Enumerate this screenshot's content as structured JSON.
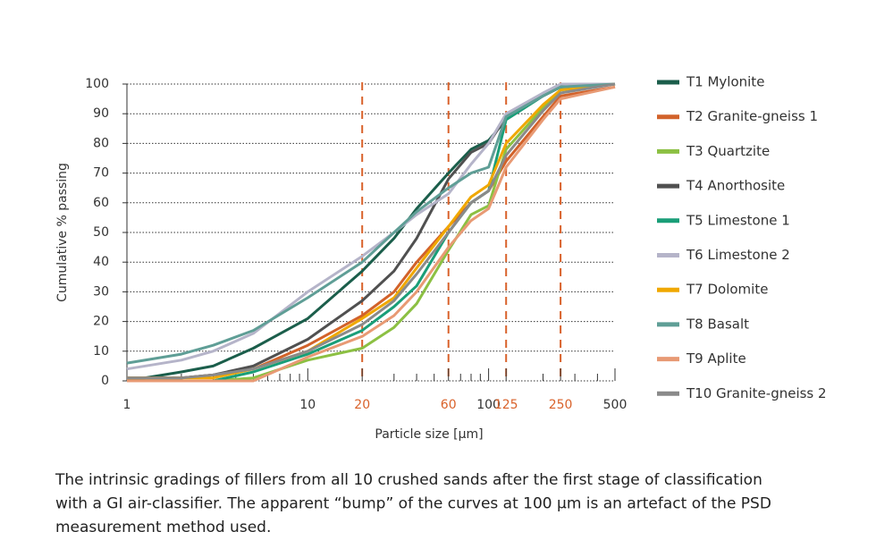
{
  "chart_data": {
    "type": "line",
    "xlabel": "Particle size [µm]",
    "ylabel": "Cumulative % passing",
    "log_x": true,
    "grid": "y-dotted",
    "legend": "right",
    "x": [
      1,
      2,
      3,
      5,
      10,
      20,
      30,
      40,
      60,
      80,
      100,
      125,
      200,
      250,
      500
    ],
    "xlim": [
      1,
      500
    ],
    "xticks": [
      1,
      10,
      20,
      60,
      100,
      125,
      250,
      500
    ],
    "xticks_minor": [
      2,
      3,
      4,
      5,
      6,
      7,
      8,
      9,
      30,
      40,
      50,
      70,
      80,
      90,
      200,
      300,
      400
    ],
    "highlight_x": [
      20,
      60,
      125,
      250
    ],
    "highlight_color": "#d9622b",
    "ylim": [
      0,
      100
    ],
    "yticks": [
      0,
      10,
      20,
      30,
      40,
      50,
      60,
      70,
      80,
      90,
      100
    ],
    "series": [
      {
        "name": "T1 Mylonite",
        "color": "#1b5e4b",
        "values": [
          0,
          3,
          5,
          11,
          21,
          37,
          48,
          58,
          70,
          78,
          81,
          88,
          96,
          99,
          100
        ]
      },
      {
        "name": "T2 Granite-gneiss 1",
        "color": "#d2622a",
        "values": [
          1,
          1,
          2,
          4,
          12,
          22,
          30,
          40,
          52,
          60,
          64,
          74,
          89,
          96,
          99
        ]
      },
      {
        "name": "T3 Quartzite",
        "color": "#8cc043",
        "values": [
          0,
          0,
          0,
          1,
          7,
          11,
          18,
          26,
          44,
          56,
          59,
          78,
          92,
          98,
          100
        ]
      },
      {
        "name": "T4 Anorthosite",
        "color": "#505050",
        "values": [
          1,
          1,
          2,
          5,
          14,
          27,
          37,
          48,
          68,
          77,
          80,
          89,
          96,
          99,
          100
        ]
      },
      {
        "name": "T5 Limestone 1",
        "color": "#1a9e78",
        "values": [
          0,
          0,
          0,
          3,
          9,
          17,
          25,
          32,
          50,
          60,
          64,
          88,
          96,
          99,
          100
        ]
      },
      {
        "name": "T6 Limestone 2",
        "color": "#b5b4c9",
        "values": [
          4,
          7,
          10,
          16,
          30,
          42,
          50,
          56,
          63,
          73,
          80,
          90,
          97,
          100,
          100
        ]
      },
      {
        "name": "T7 Dolomite",
        "color": "#f0a800",
        "values": [
          1,
          1,
          1,
          4,
          10,
          21,
          28,
          38,
          52,
          62,
          66,
          80,
          93,
          98,
          100
        ]
      },
      {
        "name": "T8 Basalt",
        "color": "#5f9e96",
        "values": [
          6,
          9,
          12,
          17,
          28,
          40,
          50,
          57,
          65,
          70,
          72,
          89,
          96,
          99,
          100
        ]
      },
      {
        "name": "T9 Aplite",
        "color": "#e89a74",
        "values": [
          0,
          0,
          0,
          0,
          8,
          15,
          22,
          30,
          45,
          54,
          58,
          72,
          88,
          95,
          99
        ]
      },
      {
        "name": "T10 Granite-gneiss 2",
        "color": "#8a8a8a",
        "values": [
          1,
          1,
          2,
          4,
          10,
          19,
          27,
          36,
          50,
          60,
          64,
          76,
          91,
          97,
          100
        ]
      }
    ],
    "caption": [
      "The intrinsic gradings of fillers from all 10 crushed sands after the first stage of classification",
      "with a GI air-classifier. The apparent “bump” of the curves at 100 µm is an artefact of the PSD",
      "measurement method used."
    ]
  }
}
